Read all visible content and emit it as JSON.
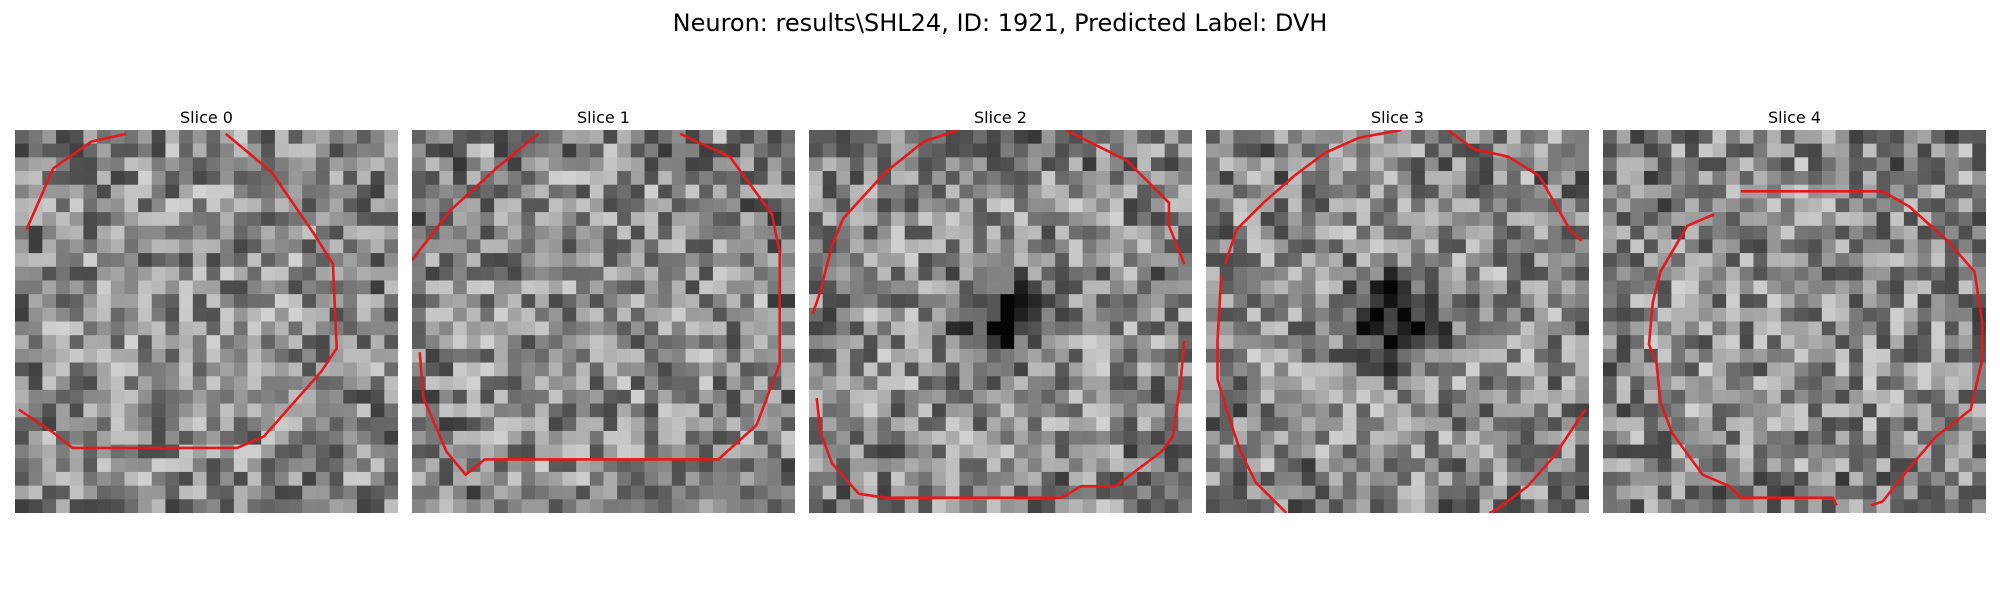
{
  "figure": {
    "title": "Neuron: results\\SHL24, ID: 1921, Predicted Label: DVH"
  },
  "panels": [
    {
      "title": "Slice 0",
      "seed": 11,
      "dark_center": 0.0,
      "contour_color": "#e31a1c"
    },
    {
      "title": "Slice 1",
      "seed": 23,
      "dark_center": 0.0,
      "contour_color": "#e31a1c"
    },
    {
      "title": "Slice 2",
      "seed": 37,
      "dark_center": 0.45,
      "contour_color": "#e31a1c"
    },
    {
      "title": "Slice 3",
      "seed": 51,
      "dark_center": 0.55,
      "contour_color": "#e31a1c"
    },
    {
      "title": "Slice 4",
      "seed": 67,
      "dark_center": 0.0,
      "contour_color": "#e31a1c"
    }
  ],
  "colormap": "gray"
}
